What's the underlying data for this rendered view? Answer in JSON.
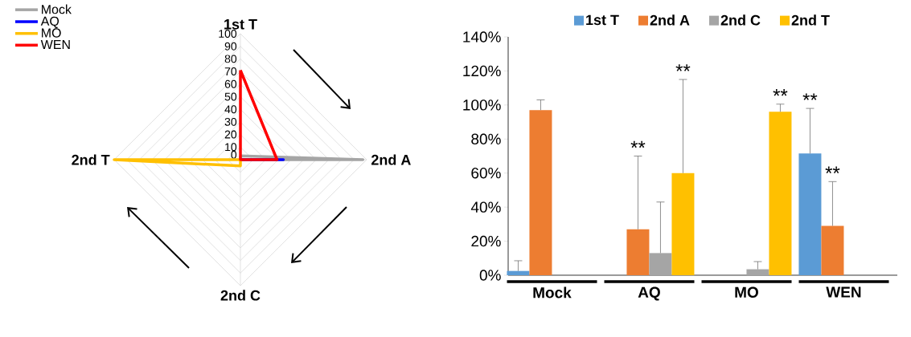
{
  "chart_data": [
    {
      "type": "radar",
      "categories": [
        "1st T",
        "2nd A",
        "2nd C",
        "2nd T"
      ],
      "series": [
        {
          "name": "Mock",
          "color": "#a5a5a5",
          "values": [
            3,
            97,
            0,
            0
          ]
        },
        {
          "name": "AQ",
          "color": "#0000ff",
          "values": [
            0,
            34,
            0,
            0
          ]
        },
        {
          "name": "MO",
          "color": "#ffc000",
          "values": [
            0,
            0,
            5,
            100
          ]
        },
        {
          "name": "WEN",
          "color": "#ff0000",
          "values": [
            71,
            29,
            0,
            0
          ]
        }
      ],
      "ylim": [
        0,
        100
      ],
      "yticks": [
        0,
        10,
        20,
        30,
        40,
        50,
        60,
        70,
        80,
        90,
        100
      ],
      "grid": true,
      "legend": "top left"
    },
    {
      "type": "bar",
      "categories": [
        "Mock",
        "AQ",
        "MO",
        "WEN"
      ],
      "series": [
        {
          "name": "1st T",
          "color": "#5b9bd5",
          "values": [
            2.5,
            0,
            0,
            71.5
          ],
          "errors": [
            6,
            null,
            null,
            26.5
          ]
        },
        {
          "name": "2nd A",
          "color": "#ed7d31",
          "values": [
            97,
            27,
            0,
            29
          ],
          "errors": [
            6,
            43,
            null,
            26
          ]
        },
        {
          "name": "2nd C",
          "color": "#a5a5a5",
          "values": [
            0,
            13,
            3.5,
            0
          ],
          "errors": [
            null,
            30,
            4.5,
            null
          ]
        },
        {
          "name": "2nd T",
          "color": "#ffc000",
          "values": [
            0,
            60,
            96,
            0
          ],
          "errors": [
            null,
            55,
            4.5,
            null
          ]
        }
      ],
      "ylim": [
        0,
        140
      ],
      "yticks": [
        {
          "value": 0,
          "label": "0%"
        },
        {
          "value": 20,
          "label": "20%"
        },
        {
          "value": 40,
          "label": "40%"
        },
        {
          "value": 60,
          "label": "60%"
        },
        {
          "value": 80,
          "label": "80%"
        },
        {
          "value": 100,
          "label": "100%"
        },
        {
          "value": 120,
          "label": "120%"
        },
        {
          "value": 140,
          "label": "140%"
        }
      ],
      "legend": "top",
      "annotations": [
        "**",
        "**",
        "**",
        "**",
        "**"
      ]
    }
  ]
}
